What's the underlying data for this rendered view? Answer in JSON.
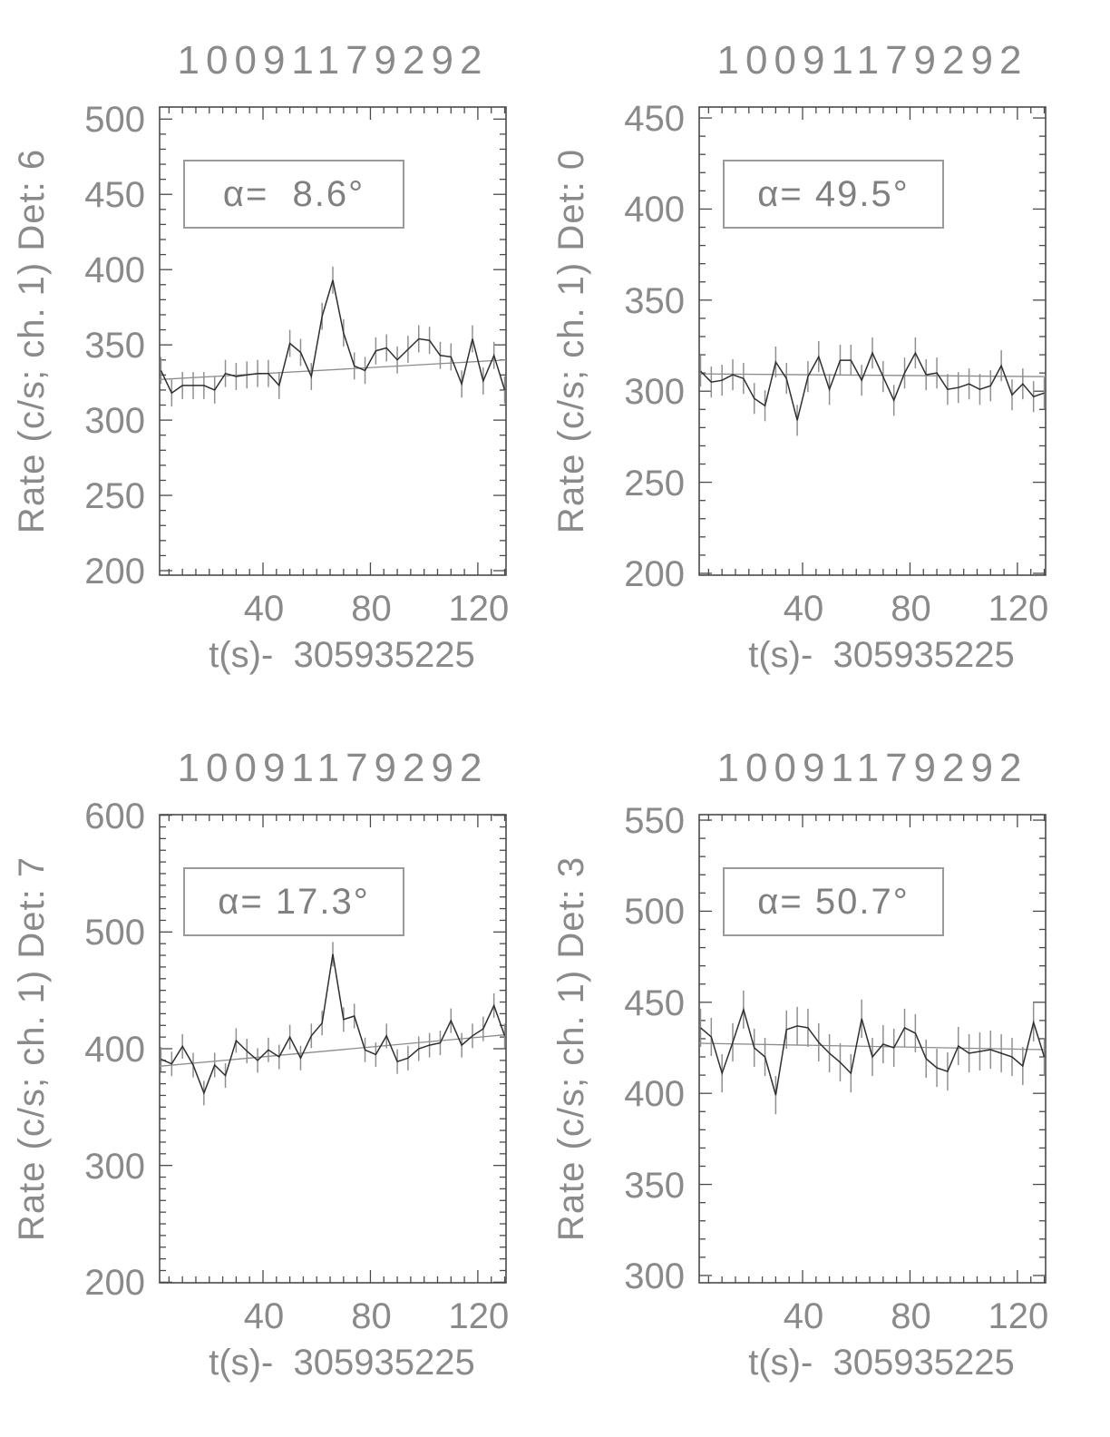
{
  "style": {
    "background": "#ffffff",
    "text": "#8a8a8a",
    "curve": "#2f2f2f",
    "error_bar": "#909090",
    "fit_line": "#8c8c8c",
    "axis": "#4a4a4a",
    "annotation_border": "#9a9a9a"
  },
  "chart_data": [
    {
      "type": "line",
      "title": "10091179292",
      "ylabel": "Rate (c/s; ch. 1) Det: 6",
      "xlabel": "t(s)-  305935225",
      "annotation": "α=  8.6°",
      "alpha_deg": 8.6,
      "detector": 6,
      "grid": false,
      "xlim": [
        1.5,
        130.5
      ],
      "ylim": [
        197,
        508
      ],
      "xticks": [
        40,
        80,
        120
      ],
      "yticks": [
        200,
        250,
        300,
        350,
        400,
        450,
        500
      ],
      "x_minor_step": 5,
      "y_minor_step": 10,
      "x": [
        2,
        6,
        10,
        14,
        18,
        22,
        26,
        30,
        34,
        38,
        42,
        46,
        50,
        54,
        58,
        62,
        66,
        70,
        74,
        78,
        82,
        86,
        90,
        94,
        98,
        102,
        106,
        110,
        114,
        118,
        122,
        126,
        130
      ],
      "y": [
        333,
        318,
        323,
        323,
        323,
        320,
        331,
        329,
        330,
        331,
        331,
        323,
        351,
        345,
        329,
        369,
        393,
        358,
        336,
        333,
        346,
        348,
        340,
        347,
        354,
        353,
        343,
        342,
        324,
        354,
        326,
        343,
        320
      ],
      "yerr": 9,
      "fit_line": {
        "x": [
          1.5,
          130.5
        ],
        "y": [
          327,
          340
        ]
      }
    },
    {
      "type": "line",
      "title": "10091179292",
      "ylabel": "Rate (c/s; ch. 1) Det: 0",
      "xlabel": "t(s)-  305935225",
      "annotation": "α= 49.5°",
      "alpha_deg": 49.5,
      "detector": 0,
      "grid": false,
      "xlim": [
        1.5,
        130.5
      ],
      "ylim": [
        199,
        456
      ],
      "xticks": [
        40,
        80,
        120
      ],
      "yticks": [
        200,
        250,
        300,
        350,
        400,
        450
      ],
      "x_minor_step": 5,
      "y_minor_step": 10,
      "x": [
        2,
        6,
        10,
        14,
        18,
        22,
        26,
        30,
        34,
        38,
        42,
        46,
        50,
        54,
        58,
        62,
        66,
        70,
        74,
        78,
        82,
        86,
        90,
        94,
        98,
        102,
        106,
        110,
        114,
        118,
        122,
        126,
        130
      ],
      "y": [
        311,
        305,
        306,
        309,
        307,
        296,
        292,
        316,
        307,
        284,
        308,
        319,
        301,
        317,
        317,
        306,
        321,
        308,
        295,
        310,
        321,
        309,
        310,
        301,
        302,
        304,
        301,
        303,
        314,
        298,
        304,
        297,
        299
      ],
      "yerr": 8.5,
      "fit_line": {
        "x": [
          1.5,
          130.5
        ],
        "y": [
          309.5,
          308
        ]
      }
    },
    {
      "type": "line",
      "title": "10091179292",
      "ylabel": "Rate (c/s; ch. 1) Det: 7",
      "xlabel": "t(s)-  305935225",
      "annotation": "α= 17.3°",
      "alpha_deg": 17.3,
      "detector": 7,
      "grid": false,
      "xlim": [
        1.5,
        130.5
      ],
      "ylim": [
        199.5,
        600.5
      ],
      "xticks": [
        40,
        80,
        120
      ],
      "yticks": [
        200,
        300,
        400,
        500,
        600
      ],
      "x_minor_step": 5,
      "y_minor_step": 10,
      "x": [
        2,
        6,
        10,
        14,
        18,
        22,
        26,
        30,
        34,
        38,
        42,
        46,
        50,
        54,
        58,
        62,
        66,
        70,
        74,
        78,
        82,
        86,
        90,
        94,
        98,
        102,
        106,
        110,
        114,
        118,
        122,
        126,
        130
      ],
      "y": [
        391,
        387,
        402,
        386,
        362,
        386,
        377,
        407,
        398,
        390,
        399,
        393,
        410,
        392,
        411,
        422,
        481,
        425,
        428,
        399,
        395,
        411,
        389,
        392,
        400,
        403,
        405,
        424,
        403,
        411,
        417,
        437,
        411
      ],
      "yerr": 10.5,
      "fit_line": {
        "x": [
          1.5,
          130.5
        ],
        "y": [
          385,
          412
        ]
      }
    },
    {
      "type": "line",
      "title": "10091179292",
      "ylabel": "Rate (c/s; ch. 1) Det: 3",
      "xlabel": "t(s)-  305935225",
      "annotation": "α= 50.7°",
      "alpha_deg": 50.7,
      "detector": 3,
      "grid": false,
      "xlim": [
        1.5,
        130.5
      ],
      "ylim": [
        296,
        553
      ],
      "xticks": [
        40,
        80,
        120
      ],
      "yticks": [
        300,
        350,
        400,
        450,
        500,
        550
      ],
      "x_minor_step": 5,
      "y_minor_step": 10,
      "x": [
        2,
        6,
        10,
        14,
        18,
        22,
        26,
        30,
        34,
        38,
        42,
        46,
        50,
        54,
        58,
        62,
        66,
        70,
        74,
        78,
        82,
        86,
        90,
        94,
        98,
        102,
        106,
        110,
        114,
        118,
        122,
        126,
        130
      ],
      "y": [
        436,
        431,
        411,
        428,
        446,
        425,
        420,
        399,
        435,
        437,
        436,
        428,
        422,
        417,
        411,
        441,
        420,
        427,
        425,
        436,
        433,
        419,
        414,
        412,
        426,
        422,
        423,
        424,
        422,
        420,
        415,
        439,
        420
      ],
      "yerr": 10.5,
      "fit_line": {
        "x": [
          1.5,
          130.5
        ],
        "y": [
          427.5,
          424
        ]
      }
    }
  ]
}
